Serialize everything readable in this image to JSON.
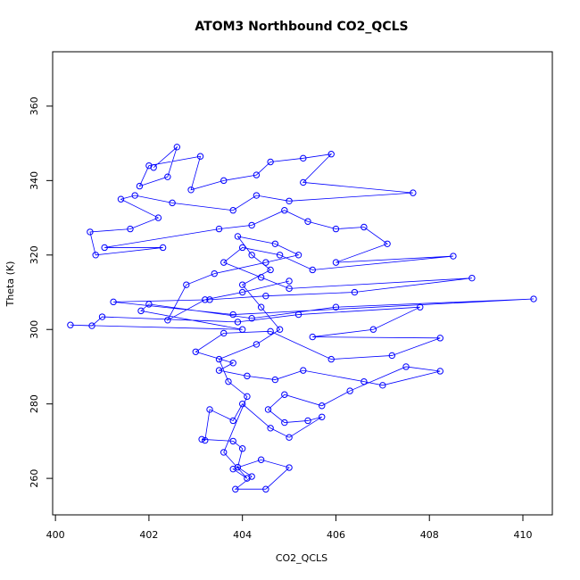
{
  "chart_data": {
    "type": "line",
    "title": "ATOM3 Northbound CO2_QCLS",
    "xlabel": "CO2_QCLS",
    "ylabel": "Theta (K)",
    "color": "#0000ff",
    "markers": true,
    "xlim": [
      399.94,
      410.63
    ],
    "ylim": [
      250.2,
      374.6
    ],
    "xticks": [
      400,
      402,
      404,
      406,
      408,
      410
    ],
    "yticks": [
      260,
      280,
      300,
      320,
      340,
      360
    ],
    "series": [
      {
        "name": "CO2_QCLS",
        "color": "#0000ff",
        "x": [
          402.1,
          402.6,
          402.4,
          401.8,
          402.0,
          403.1,
          402.9,
          403.6,
          404.3,
          404.6,
          405.3,
          405.9,
          405.3,
          407.65,
          405.0,
          404.3,
          403.8,
          402.5,
          401.7,
          401.4,
          402.2,
          401.6,
          400.74,
          400.86,
          402.3,
          401.05,
          403.5,
          404.2,
          404.9,
          405.4,
          406.0,
          406.6,
          407.1,
          406.0,
          408.51,
          405.5,
          404.8,
          404.0,
          403.6,
          404.4,
          405.0,
          408.91,
          406.4,
          404.5,
          403.3,
          401.24,
          403.8,
          410.23,
          406.0,
          404.2,
          402.0,
          401.83,
          404.0,
          400.32,
          400.78,
          401.0,
          403.9,
          405.2,
          407.8,
          406.8,
          405.5,
          408.23,
          407.2,
          405.9,
          404.6,
          403.6,
          403.0,
          403.8,
          403.5,
          404.1,
          404.7,
          405.3,
          406.6,
          407.0,
          408.23,
          407.5,
          406.3,
          405.7,
          404.9,
          404.55,
          404.9,
          405.4,
          405.7,
          405.0,
          404.6,
          404.0,
          403.8,
          403.3,
          403.2,
          403.13,
          403.8,
          404.0,
          403.9,
          404.2,
          403.85,
          404.5,
          405.0,
          404.4,
          403.8,
          404.1,
          403.6,
          404.1,
          403.7,
          403.5,
          404.3,
          404.8,
          404.4,
          404.0,
          404.6,
          404.2,
          403.9,
          404.7,
          405.2,
          404.5,
          403.4,
          402.8,
          402.4,
          403.2,
          404.0,
          405.0
        ],
        "values": [
          343.5,
          349.0,
          341.0,
          338.5,
          344.0,
          346.5,
          337.5,
          340.0,
          341.5,
          345.0,
          346.0,
          347.1,
          339.5,
          336.7,
          334.5,
          336.0,
          332.0,
          334.0,
          336.0,
          335.0,
          330.0,
          327.0,
          326.2,
          320.0,
          322.0,
          322.0,
          327.0,
          328.0,
          332.0,
          329.0,
          327.0,
          327.5,
          323.0,
          318.0,
          319.7,
          316.0,
          320.0,
          322.0,
          318.0,
          314.0,
          311.0,
          313.8,
          310.0,
          309.0,
          308.0,
          307.4,
          304.0,
          308.2,
          306.0,
          303.0,
          306.8,
          305.0,
          300.0,
          301.2,
          301.0,
          303.4,
          302.0,
          304.0,
          306.0,
          300.0,
          298.0,
          297.7,
          293.0,
          292.0,
          299.5,
          299.0,
          294.0,
          291.0,
          289.0,
          287.5,
          286.5,
          289.0,
          286.0,
          285.0,
          288.8,
          290.0,
          283.5,
          279.5,
          282.5,
          278.5,
          275.0,
          275.5,
          276.5,
          271.0,
          273.5,
          280.0,
          275.5,
          278.5,
          270.2,
          270.5,
          270.0,
          268.0,
          263.0,
          260.5,
          257.1,
          257.1,
          262.9,
          265.0,
          262.5,
          260.0,
          267.0,
          282.0,
          286.0,
          292.0,
          296.0,
          300.0,
          306.0,
          312.0,
          316.0,
          320.0,
          325.0,
          323.0,
          320.0,
          318.0,
          315.0,
          312.0,
          302.5,
          308.0,
          310.0,
          313.0
        ]
      }
    ]
  }
}
